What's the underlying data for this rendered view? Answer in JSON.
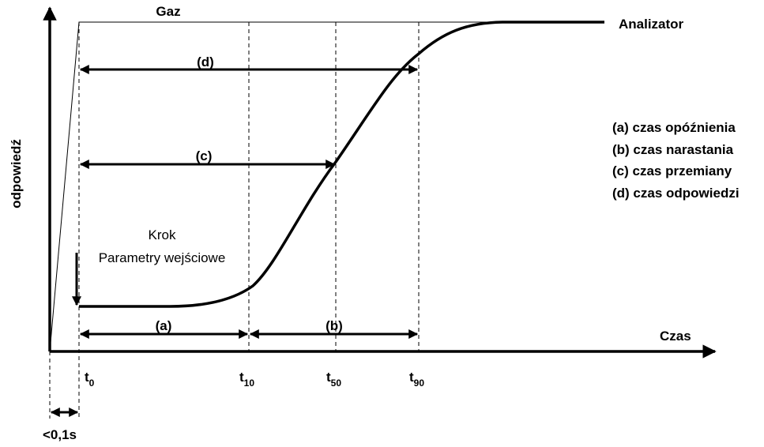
{
  "labels": {
    "gas": "Gaz",
    "analyzer": "Analizator",
    "y_axis": "odpowiedź",
    "x_axis": "Czas",
    "step": "Krok",
    "input": "Parametry wejściowe",
    "small_interval": "<0,1s"
  },
  "arrows": {
    "d": "(d)",
    "c": "(c)",
    "a": "(a)",
    "b": "(b)"
  },
  "times": [
    {
      "main": "t",
      "sub": "0"
    },
    {
      "main": "t",
      "sub": "10"
    },
    {
      "main": "t",
      "sub": "50"
    },
    {
      "main": "t",
      "sub": "90"
    }
  ],
  "legend": [
    "(a) czas opóźnienia",
    "(b) czas narastania",
    "(c) czas przemiany",
    "(d) czas odpowiedzi"
  ]
}
